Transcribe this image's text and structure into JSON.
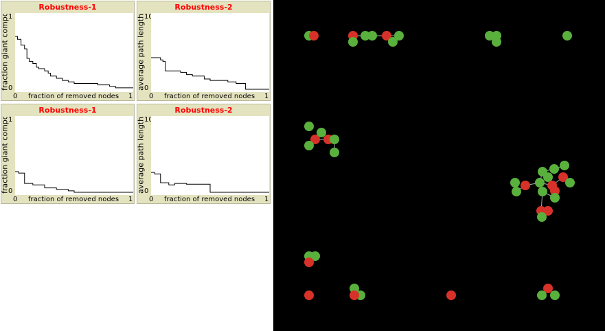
{
  "plots": [
    {
      "title": "Robustness-1",
      "ylabel": "fraction giant component",
      "ymax": "1",
      "ymin": "0",
      "xmin": "0",
      "xmax": "1",
      "xlabel": "fraction of removed nodes",
      "chart_data": {
        "type": "line",
        "title": "Robustness-1",
        "xlabel": "fraction of removed nodes",
        "ylabel": "fraction giant component",
        "xlim": [
          0,
          1
        ],
        "ylim": [
          0,
          1
        ],
        "x": [
          0,
          0.02,
          0.05,
          0.08,
          0.1,
          0.12,
          0.15,
          0.18,
          0.2,
          0.25,
          0.28,
          0.3,
          0.35,
          0.4,
          0.45,
          0.5,
          0.6,
          0.7,
          0.8,
          0.85,
          0.9,
          1.0
        ],
        "y": [
          0.72,
          0.68,
          0.6,
          0.55,
          0.42,
          0.38,
          0.35,
          0.3,
          0.28,
          0.25,
          0.22,
          0.18,
          0.15,
          0.12,
          0.1,
          0.08,
          0.08,
          0.06,
          0.04,
          0.02,
          0.02,
          0.02
        ]
      }
    },
    {
      "title": "Robustness-2",
      "ylabel": "average path length",
      "ymax": "10",
      "ymin": "0",
      "xmin": "0",
      "xmax": "1",
      "xlabel": "fraction of removed nodes",
      "chart_data": {
        "type": "line",
        "title": "Robustness-2",
        "xlabel": "fraction of removed nodes",
        "ylabel": "average path length",
        "xlim": [
          0,
          1
        ],
        "ylim": [
          0,
          10
        ],
        "x": [
          0,
          0.05,
          0.08,
          0.1,
          0.12,
          0.15,
          0.25,
          0.3,
          0.35,
          0.45,
          0.5,
          0.6,
          0.65,
          0.72,
          0.75,
          0.8,
          1.0
        ],
        "y": [
          4.3,
          4.3,
          4.0,
          3.8,
          2.5,
          2.5,
          2.3,
          2.0,
          1.8,
          1.4,
          1.2,
          1.2,
          1.0,
          0.8,
          0.8,
          0.0,
          0.0
        ]
      }
    },
    {
      "title": "Robustness-1",
      "ylabel": "fraction giant component",
      "ymax": "1",
      "ymin": "0",
      "xmin": "0",
      "xmax": "1",
      "xlabel": "fraction of removed nodes",
      "chart_data": {
        "type": "line",
        "title": "Robustness-1",
        "xlabel": "fraction of removed nodes",
        "ylabel": "fraction giant component",
        "xlim": [
          0,
          1
        ],
        "ylim": [
          0,
          1
        ],
        "x": [
          0,
          0.03,
          0.08,
          0.15,
          0.25,
          0.35,
          0.45,
          0.5,
          1.0
        ],
        "y": [
          0.28,
          0.26,
          0.12,
          0.1,
          0.06,
          0.04,
          0.02,
          0.0,
          0.0
        ]
      }
    },
    {
      "title": "Robustness-2",
      "ylabel": "average path length",
      "ymax": "10",
      "ymin": "0",
      "xmin": "0",
      "xmax": "1",
      "xlabel": "fraction of removed nodes",
      "chart_data": {
        "type": "line",
        "title": "Robustness-2",
        "xlabel": "fraction of removed nodes",
        "ylabel": "average path length",
        "xlim": [
          0,
          1
        ],
        "ylim": [
          0,
          10
        ],
        "x": [
          0,
          0.03,
          0.08,
          0.15,
          0.2,
          0.3,
          0.45,
          0.5,
          1.0
        ],
        "y": [
          2.7,
          2.5,
          1.3,
          1.0,
          1.2,
          1.1,
          1.1,
          0.0,
          0.0
        ]
      }
    }
  ],
  "world": {
    "background": "#000000",
    "node_colors": {
      "g": "#59b03c",
      "r": "#d73229"
    },
    "link_color": "#aaaaaa",
    "nodes": [
      [
        52,
        52,
        "g"
      ],
      [
        59,
        52,
        "r"
      ],
      [
        116,
        52,
        "r"
      ],
      [
        116,
        61,
        "g"
      ],
      [
        134,
        52,
        "g"
      ],
      [
        144,
        52,
        "g"
      ],
      [
        165,
        52,
        "r"
      ],
      [
        174,
        61,
        "g"
      ],
      [
        183,
        52,
        "g"
      ],
      [
        315,
        52,
        "g"
      ],
      [
        325,
        52,
        "g"
      ],
      [
        325,
        61,
        "g"
      ],
      [
        428,
        52,
        "g"
      ],
      [
        52,
        184,
        "g"
      ],
      [
        61,
        203,
        "r"
      ],
      [
        52,
        212,
        "g"
      ],
      [
        70,
        193,
        "g"
      ],
      [
        80,
        203,
        "r"
      ],
      [
        89,
        203,
        "g"
      ],
      [
        89,
        222,
        "g"
      ],
      [
        352,
        266,
        "g"
      ],
      [
        354,
        279,
        "g"
      ],
      [
        367,
        270,
        "r"
      ],
      [
        392,
        250,
        "g"
      ],
      [
        409,
        246,
        "g"
      ],
      [
        424,
        241,
        "g"
      ],
      [
        400,
        258,
        "g"
      ],
      [
        388,
        266,
        "g"
      ],
      [
        406,
        270,
        "r"
      ],
      [
        410,
        278,
        "r"
      ],
      [
        422,
        258,
        "r"
      ],
      [
        432,
        266,
        "g"
      ],
      [
        392,
        279,
        "g"
      ],
      [
        410,
        288,
        "g"
      ],
      [
        390,
        307,
        "r"
      ],
      [
        400,
        307,
        "r"
      ],
      [
        391,
        316,
        "g"
      ],
      [
        52,
        373,
        "g"
      ],
      [
        61,
        373,
        "g"
      ],
      [
        52,
        382,
        "r"
      ],
      [
        52,
        430,
        "r"
      ],
      [
        118,
        420,
        "g"
      ],
      [
        127,
        430,
        "g"
      ],
      [
        118,
        430,
        "r"
      ],
      [
        259,
        430,
        "r"
      ],
      [
        400,
        420,
        "r"
      ],
      [
        391,
        430,
        "g"
      ],
      [
        410,
        430,
        "g"
      ]
    ]
  }
}
